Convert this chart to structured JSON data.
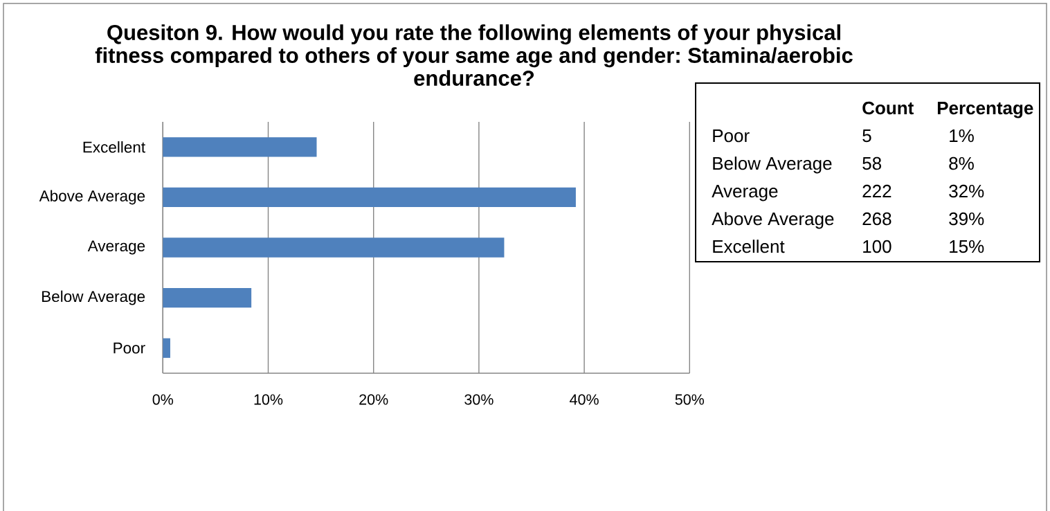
{
  "chart_data": [
    {
      "type": "bar",
      "orientation": "horizontal",
      "title": "Quesiton 9. How would you rate the following elements of your physical fitness compared to others of your same age and gender: Stamina/aerobic endurance?",
      "categories": [
        "Excellent",
        "Above Average",
        "Average",
        "Below Average",
        "Poor"
      ],
      "values": [
        14.6,
        39.2,
        32.4,
        8.4,
        0.7
      ],
      "color": "#4f81bd",
      "xlim": [
        0,
        50
      ],
      "xticks": [
        {
          "value": 0,
          "label": "0%"
        },
        {
          "value": 10,
          "label": "10%"
        },
        {
          "value": 20,
          "label": "20%"
        },
        {
          "value": 30,
          "label": "30%"
        },
        {
          "value": 40,
          "label": "40%"
        },
        {
          "value": 50,
          "label": "50%"
        }
      ],
      "grid": "x"
    },
    {
      "type": "other",
      "categories": [
        "Poor",
        "Below Average",
        "Average",
        "Above Average",
        "Excellent"
      ],
      "series": [
        {
          "name": "Count",
          "values": [
            5,
            58,
            222,
            268,
            100
          ]
        },
        {
          "name": "Percentage",
          "values": [
            1,
            8,
            32,
            39,
            15
          ],
          "value_labels": [
            "1%",
            "8%",
            "32%",
            "39%",
            "15%"
          ]
        }
      ],
      "data_labels": true
    }
  ]
}
